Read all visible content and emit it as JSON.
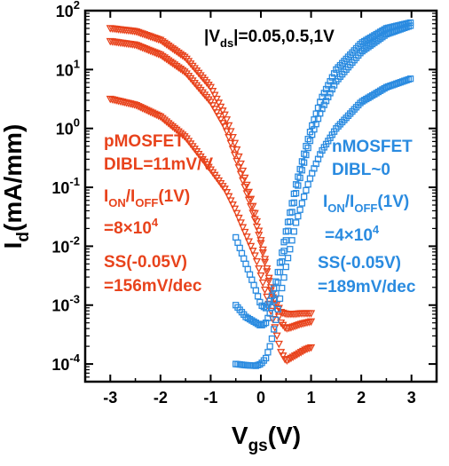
{
  "chart_data": {
    "type": "scatter",
    "title": "",
    "xlabel": {
      "main": "V",
      "sub": "gs",
      "rest": "(V)"
    },
    "ylabel": {
      "main": "I",
      "sub": "d",
      "rest": "(mA/mm)"
    },
    "xlim": [
      -3.5,
      3.5
    ],
    "ylim_log10": [
      -4.3,
      2
    ],
    "y_scale": "log",
    "x_ticks": [
      "-3",
      "-2",
      "-1",
      "0",
      "1",
      "2",
      "3"
    ],
    "y_ticks": [
      {
        "base": "10",
        "exp": "2"
      },
      {
        "base": "10",
        "exp": "1"
      },
      {
        "base": "10",
        "exp": "0"
      },
      {
        "base": "10",
        "exp": "-1"
      },
      {
        "base": "10",
        "exp": "-2"
      },
      {
        "base": "10",
        "exp": "-3"
      },
      {
        "base": "10",
        "exp": "-4"
      }
    ],
    "annotations": {
      "vds": {
        "text1": "|V",
        "sub": "ds",
        "text2": "|=0.05,0.5,1V"
      },
      "pmos": {
        "name": "pMOSFET",
        "dibl": "DIBL=11mV/V",
        "ionoff_a": "I",
        "ionoff_sub_on": "ON",
        "ionoff_b": "/I",
        "ionoff_sub_off": "OFF",
        "ionoff_c": "(1V)",
        "ratio_pre": "=8×10",
        "ratio_exp": "4",
        "ss_label": "SS(-0.05V)",
        "ss_value": "=156mV/dec"
      },
      "nmos": {
        "name": "nMOSFET",
        "dibl": "DIBL~0",
        "ionoff_a": "I",
        "ionoff_sub_on": "ON",
        "ionoff_b": "/I",
        "ionoff_sub_off": "OFF",
        "ionoff_c": "(1V)",
        "ratio_pre": "=4×10",
        "ratio_exp": "4",
        "ss_label": "SS(-0.05V)",
        "ss_value": "=189mV/dec"
      }
    },
    "series": [
      {
        "device": "pMOSFET",
        "vds": "0.05V",
        "marker": "triangle-down",
        "color": "#e8431c",
        "x": [
          -3,
          -2.5,
          -2,
          -1.5,
          -1,
          -0.7,
          -0.5,
          -0.3,
          -0.1,
          0,
          0.1,
          0.2,
          0.3,
          0.4,
          0.5,
          0.6,
          0.7,
          0.8,
          0.9,
          1
        ],
        "log_y": [
          0.5,
          0.4,
          0.2,
          -0.15,
          -0.7,
          -1.05,
          -1.4,
          -1.8,
          -2.2,
          -2.5,
          -2.8,
          -3.1,
          -3.45,
          -3.8,
          -3.95,
          -3.9,
          -3.85,
          -3.8,
          -3.75,
          -3.72
        ]
      },
      {
        "device": "pMOSFET",
        "vds": "0.5V",
        "marker": "triangle-down",
        "color": "#e8431c",
        "x": [
          -3,
          -2.5,
          -2,
          -1.5,
          -1,
          -0.7,
          -0.5,
          -0.3,
          -0.1,
          0,
          0.1,
          0.2,
          0.3,
          0.4,
          0.5,
          0.6,
          0.7,
          0.8,
          0.9,
          1
        ],
        "log_y": [
          1.48,
          1.42,
          1.25,
          0.95,
          0.45,
          0.0,
          -0.5,
          -1.05,
          -1.6,
          -1.95,
          -2.35,
          -2.75,
          -3.05,
          -3.3,
          -3.4,
          -3.38,
          -3.35,
          -3.32,
          -3.3,
          -3.28
        ]
      },
      {
        "device": "pMOSFET",
        "vds": "1V",
        "marker": "triangle-down",
        "color": "#e8431c",
        "x": [
          -3,
          -2.5,
          -2,
          -1.5,
          -1,
          -0.7,
          -0.5,
          -0.3,
          -0.1,
          0,
          0.1,
          0.2,
          0.3,
          0.4,
          0.5,
          0.6,
          0.7,
          0.8,
          0.9,
          1
        ],
        "log_y": [
          1.7,
          1.65,
          1.5,
          1.2,
          0.7,
          0.2,
          -0.3,
          -0.9,
          -1.5,
          -1.9,
          -2.3,
          -2.7,
          -2.95,
          -3.12,
          -3.15,
          -3.15,
          -3.15,
          -3.14,
          -3.14,
          -3.14
        ]
      },
      {
        "device": "nMOSFET",
        "vds": "0.05V",
        "marker": "square",
        "color": "#2a8be0",
        "x": [
          -0.5,
          -0.3,
          -0.1,
          0,
          0.1,
          0.2,
          0.3,
          0.4,
          0.5,
          0.7,
          0.9,
          1,
          1.2,
          1.5,
          2,
          2.5,
          3
        ],
        "log_y": [
          -4.0,
          -4.02,
          -4.03,
          -4.0,
          -3.9,
          -3.65,
          -3.25,
          -2.8,
          -2.35,
          -1.6,
          -1.05,
          -0.8,
          -0.4,
          0.0,
          0.45,
          0.7,
          0.85
        ]
      },
      {
        "device": "nMOSFET",
        "vds": "0.5V",
        "marker": "square",
        "color": "#2a8be0",
        "x": [
          -0.5,
          -0.3,
          -0.1,
          0,
          0.1,
          0.2,
          0.3,
          0.4,
          0.5,
          0.7,
          0.9,
          1,
          1.2,
          1.5,
          2,
          2.5,
          3
        ],
        "log_y": [
          -3.0,
          -3.2,
          -3.3,
          -3.35,
          -3.3,
          -3.1,
          -2.8,
          -2.35,
          -1.9,
          -1.1,
          -0.45,
          -0.15,
          0.3,
          0.8,
          1.3,
          1.6,
          1.75
        ]
      },
      {
        "device": "nMOSFET",
        "vds": "1V",
        "marker": "square",
        "color": "#2a8be0",
        "x": [
          -0.5,
          -0.3,
          -0.1,
          0,
          0.1,
          0.2,
          0.3,
          0.4,
          0.5,
          0.7,
          0.9,
          1,
          1.2,
          1.5,
          2,
          2.5,
          3
        ],
        "log_y": [
          -1.85,
          -2.3,
          -2.75,
          -3.0,
          -3.05,
          -2.9,
          -2.6,
          -2.2,
          -1.75,
          -0.95,
          -0.3,
          0.0,
          0.5,
          1.0,
          1.45,
          1.7,
          1.8
        ]
      }
    ]
  },
  "colors": {
    "pmos": "#e8431c",
    "nmos": "#2a8be0",
    "axis": "#000000"
  }
}
